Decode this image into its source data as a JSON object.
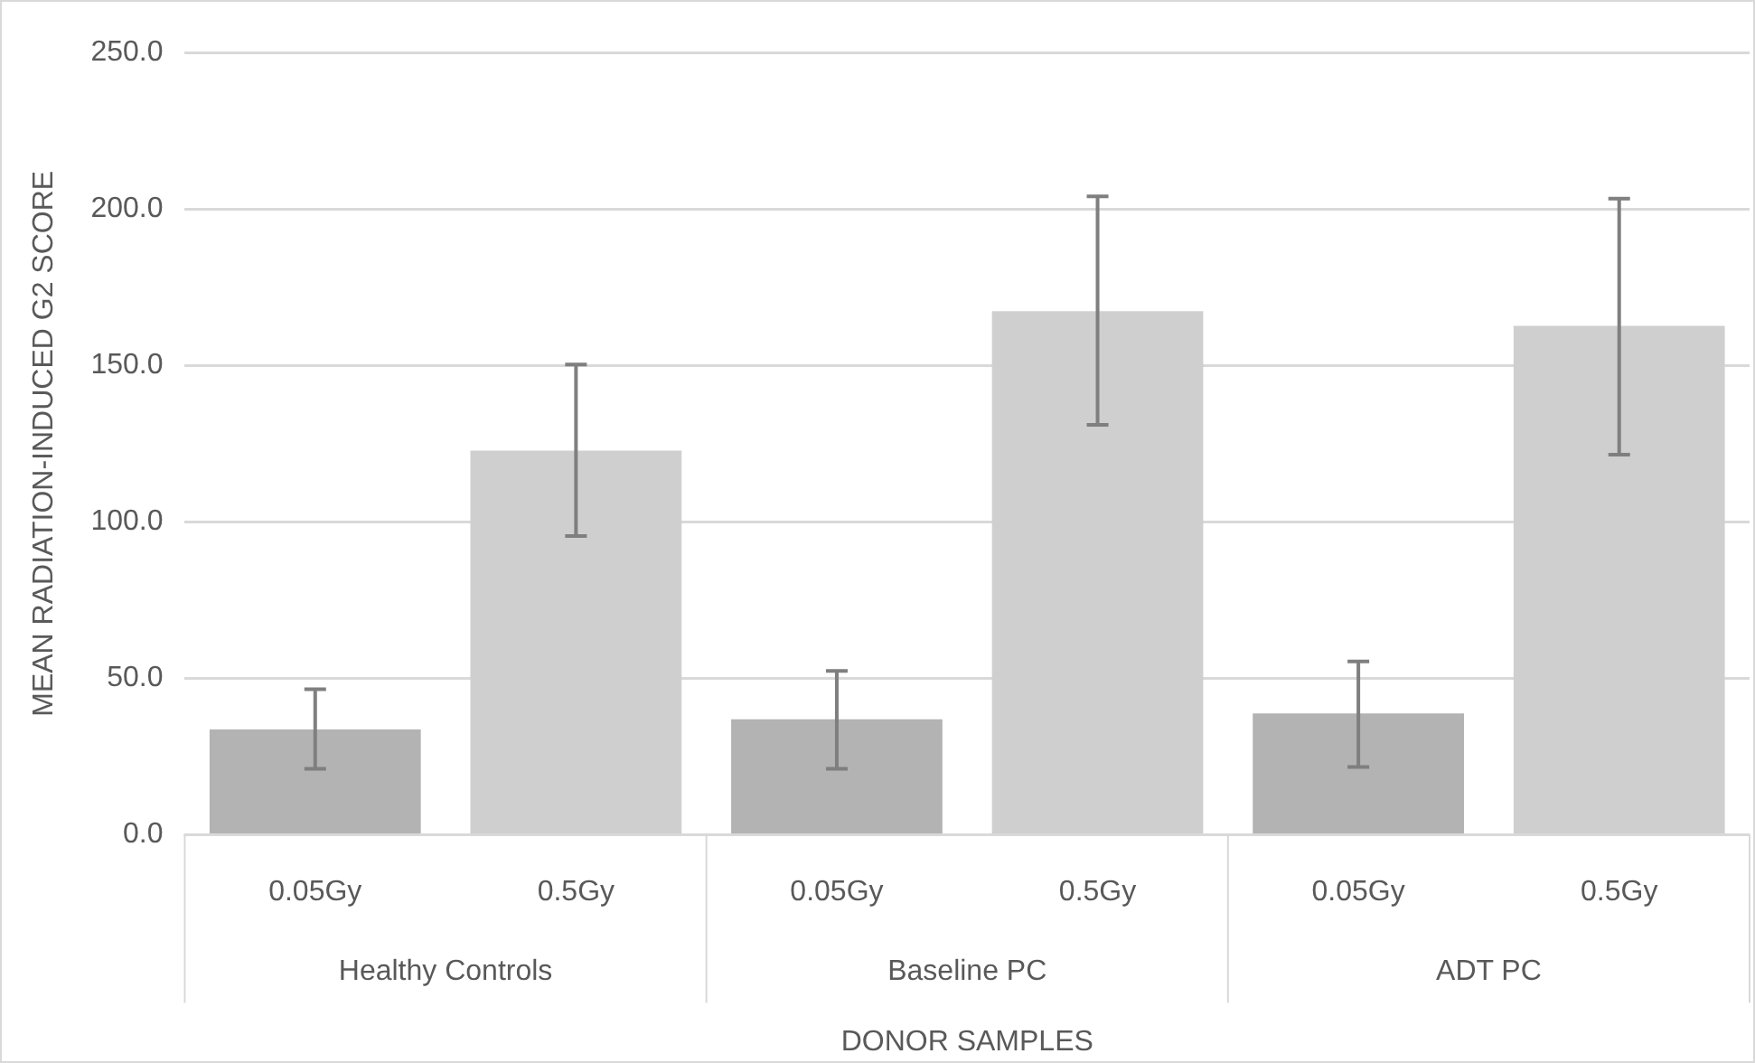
{
  "chart_data": {
    "type": "bar",
    "xlabel": "DONOR SAMPLES",
    "ylabel": "MEAN RADIATION-INDUCED G2 SCORE",
    "categories": [
      "0.05Gy",
      "0.5Gy",
      "0.05Gy",
      "0.5Gy",
      "0.05Gy",
      "0.5Gy"
    ],
    "values": [
      33.7,
      122.8,
      36.9,
      167.3,
      38.8,
      162.6
    ],
    "errors": [
      [
        21.1,
        46.5
      ],
      [
        95.5,
        150.3
      ],
      [
        21.1,
        52.4
      ],
      [
        131.0,
        204.0
      ],
      [
        21.7,
        55.4
      ],
      [
        121.5,
        203.3
      ]
    ],
    "colors": [
      "#b3b3b3",
      "#cfcfcf",
      "#b3b3b3",
      "#cfcfcf",
      "#b3b3b3",
      "#cfcfcf"
    ],
    "annotations": [
      "Healthy Controls",
      "Baseline PC",
      "ADT PC"
    ],
    "ylim": [
      0,
      250
    ],
    "yticks": [
      {
        "value": 0,
        "label": "0.0"
      },
      {
        "value": 50,
        "label": "50.0"
      },
      {
        "value": 100,
        "label": "100.0"
      },
      {
        "value": 150,
        "label": "150.0"
      },
      {
        "value": 200,
        "label": "200.0"
      },
      {
        "value": 250,
        "label": "250.0"
      }
    ],
    "grid": "y",
    "legend": false
  }
}
